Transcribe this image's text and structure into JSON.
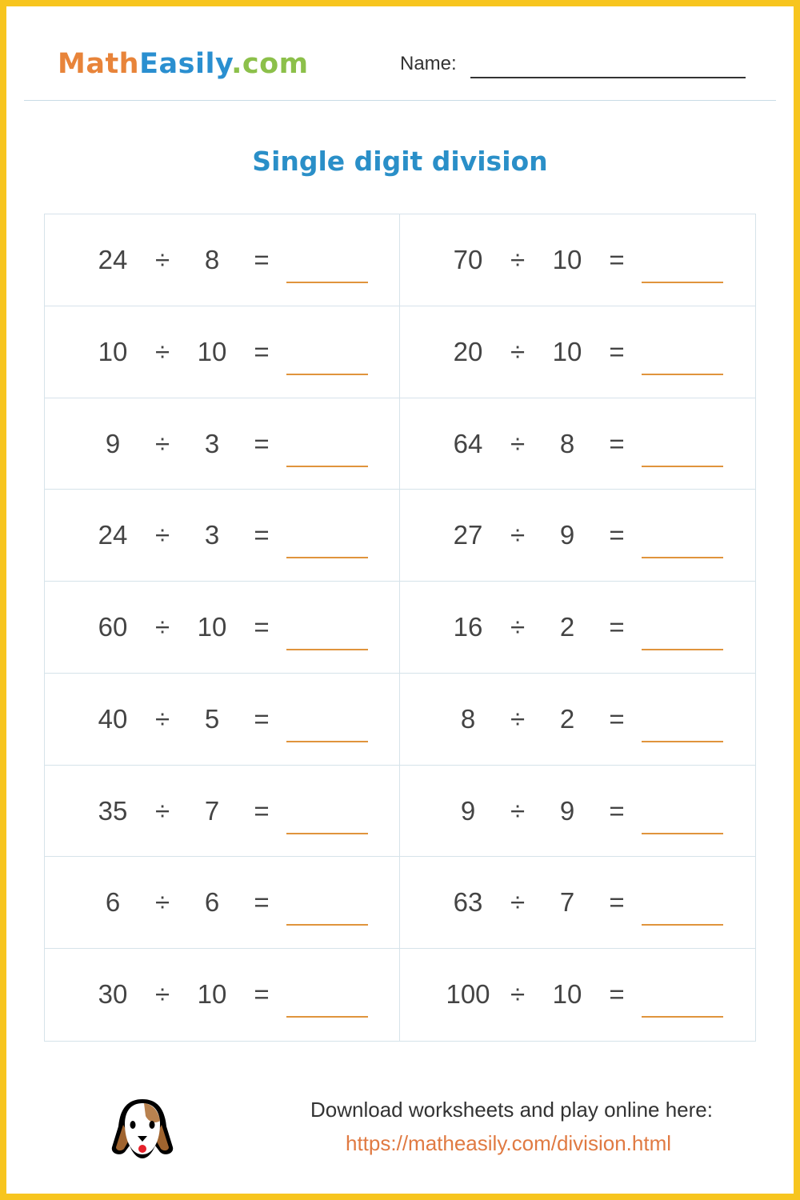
{
  "header": {
    "logo_text": "MathEasily.com",
    "logo_parts": [
      "Math",
      "Easily",
      ".com"
    ],
    "name_label": "Name:"
  },
  "title": "Single digit division",
  "operator": "÷",
  "equals": "=",
  "problems": [
    {
      "a": "24",
      "b": "8"
    },
    {
      "a": "70",
      "b": "10"
    },
    {
      "a": "10",
      "b": "10"
    },
    {
      "a": "20",
      "b": "10"
    },
    {
      "a": "9",
      "b": "3"
    },
    {
      "a": "64",
      "b": "8"
    },
    {
      "a": "24",
      "b": "3"
    },
    {
      "a": "27",
      "b": "9"
    },
    {
      "a": "60",
      "b": "10"
    },
    {
      "a": "16",
      "b": "2"
    },
    {
      "a": "40",
      "b": "5"
    },
    {
      "a": "8",
      "b": "2"
    },
    {
      "a": "35",
      "b": "7"
    },
    {
      "a": "9",
      "b": "9"
    },
    {
      "a": "6",
      "b": "6"
    },
    {
      "a": "63",
      "b": "7"
    },
    {
      "a": "30",
      "b": "10"
    },
    {
      "a": "100",
      "b": "10"
    }
  ],
  "footer": {
    "text": "Download worksheets and play online here:",
    "link": "https://matheasily.com/division.html",
    "icon": "dog-icon"
  },
  "colors": {
    "border": "#f7c51e",
    "title": "#2a8fc8",
    "answer_line": "#e0943c",
    "link": "#e07a42"
  }
}
